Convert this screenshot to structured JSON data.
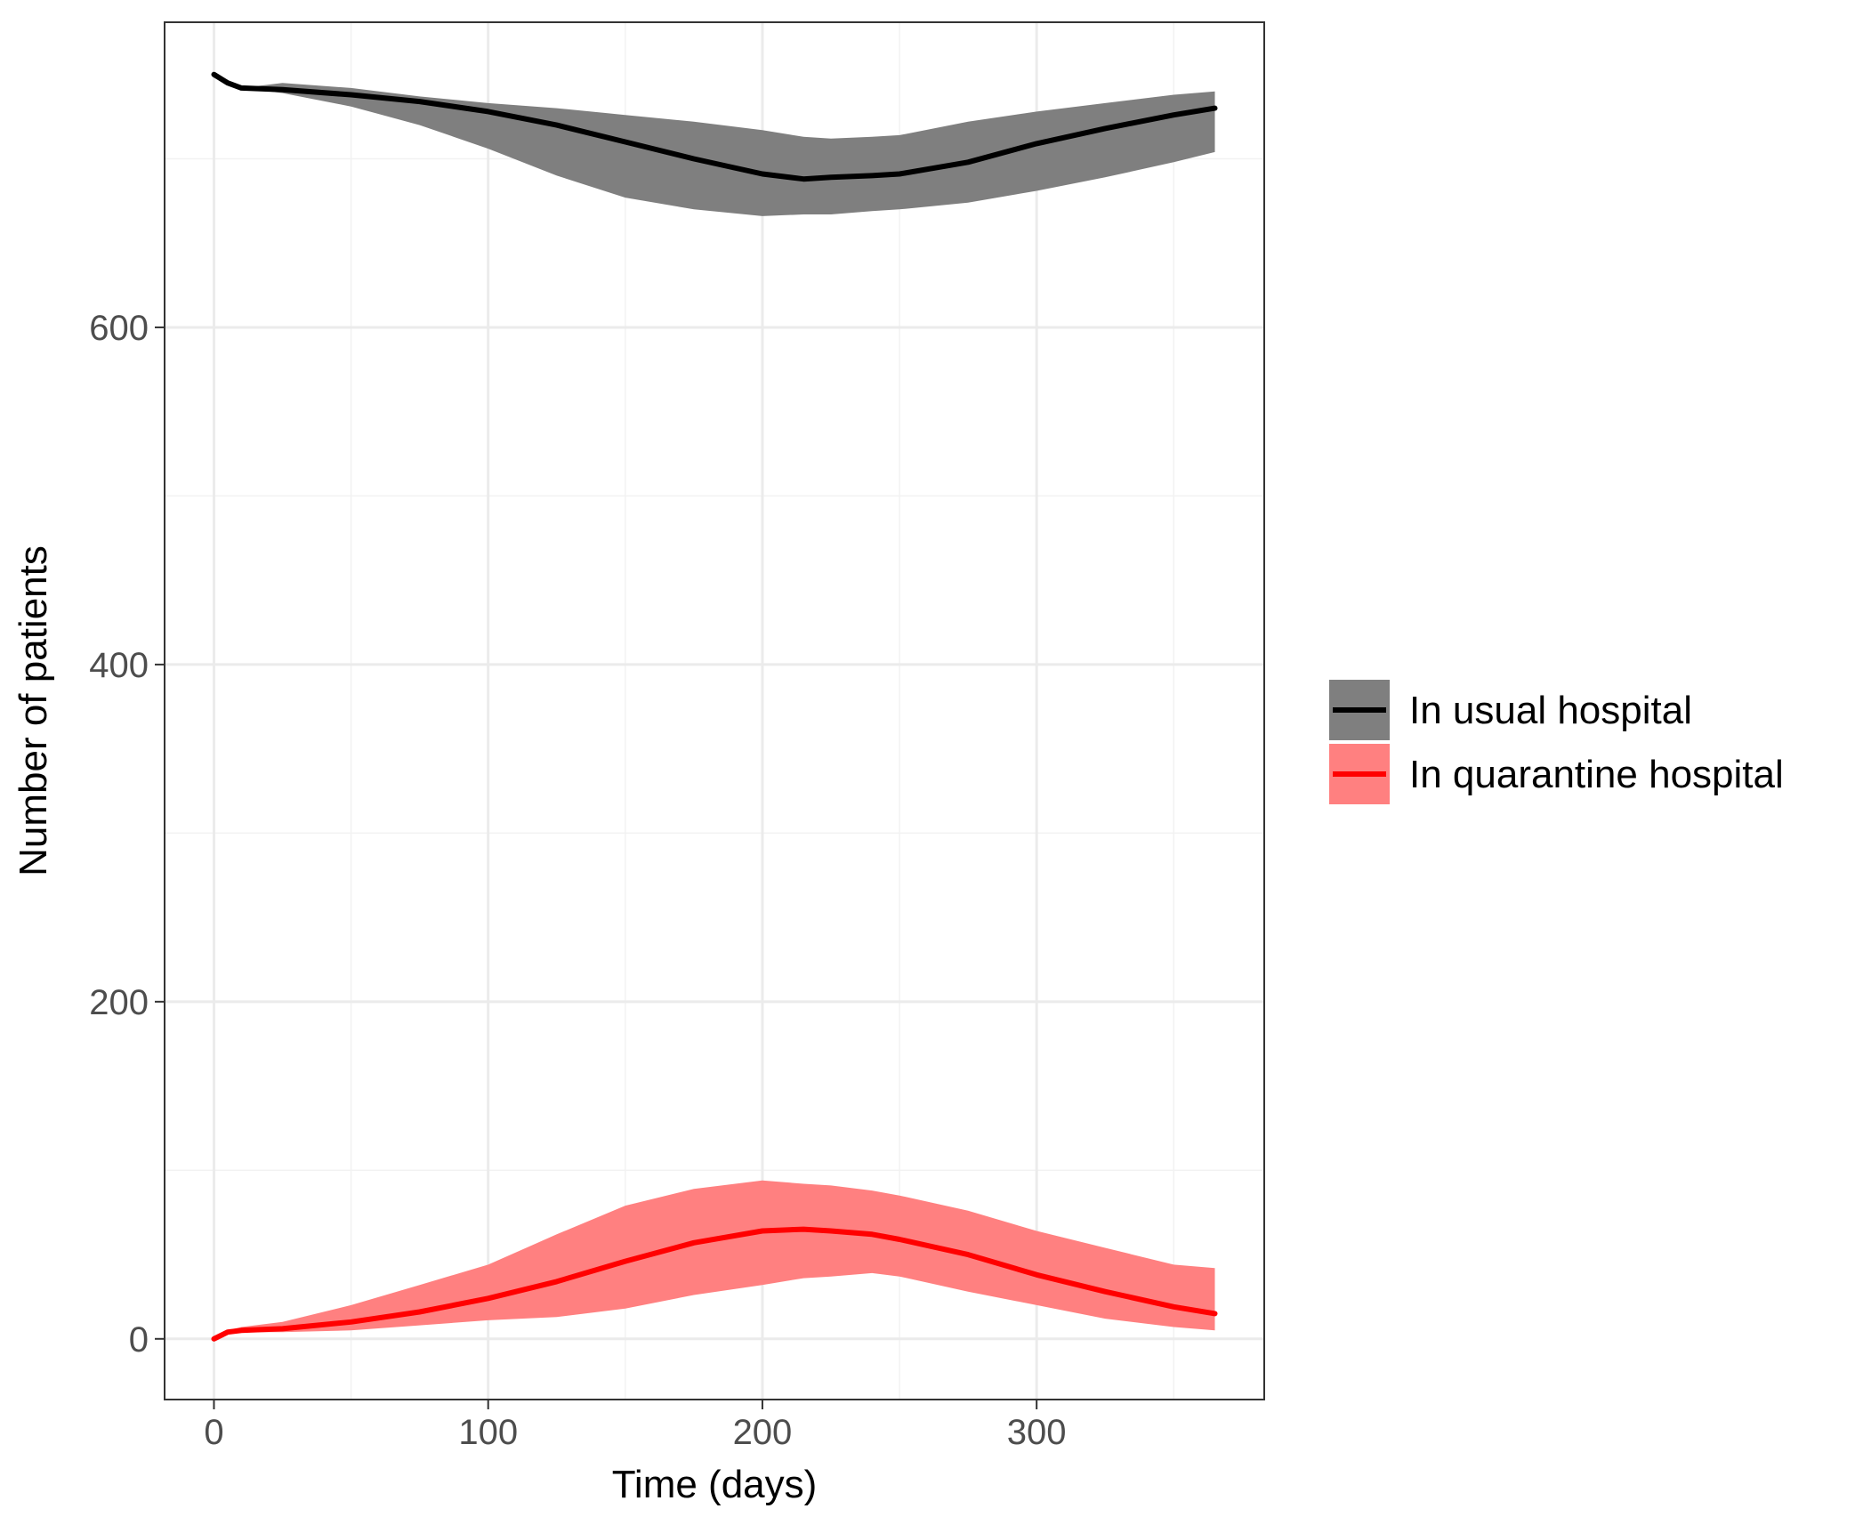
{
  "chart_data": {
    "type": "line",
    "title": "",
    "xlabel": "Time (days)",
    "ylabel": "Number of patients",
    "xlim": [
      -18,
      383
    ],
    "ylim": [
      -36,
      781
    ],
    "x_ticks": [
      0,
      100,
      200,
      300
    ],
    "x_tick_labels": [
      "0",
      "100",
      "200",
      "300"
    ],
    "y_ticks": [
      0,
      200,
      400,
      600
    ],
    "y_tick_labels": [
      "0",
      "200",
      "400",
      "600"
    ],
    "grid": true,
    "legend_position": "right",
    "series": [
      {
        "name": "In usual hospital",
        "color": "#000000",
        "band_color": "#7f7f7f",
        "x": [
          0,
          5,
          10,
          25,
          50,
          75,
          100,
          125,
          150,
          175,
          200,
          215,
          225,
          240,
          250,
          275,
          300,
          325,
          350,
          365
        ],
        "y": [
          750,
          745,
          742,
          741,
          738,
          734,
          728,
          720,
          710,
          700,
          691,
          688,
          689,
          690,
          691,
          698,
          709,
          718,
          726,
          730
        ],
        "lower": [
          750,
          745,
          742,
          739,
          731,
          720,
          706,
          690,
          677,
          670,
          666,
          667,
          667,
          669,
          670,
          674,
          681,
          689,
          698,
          704
        ],
        "upper": [
          750,
          745,
          742,
          745,
          742,
          737,
          733,
          730,
          726,
          722,
          717,
          713,
          712,
          713,
          714,
          722,
          728,
          733,
          738,
          740
        ]
      },
      {
        "name": "In quarantine hospital",
        "color": "#ff0000",
        "band_color": "#ff8080",
        "x": [
          0,
          5,
          10,
          25,
          50,
          75,
          100,
          125,
          150,
          175,
          200,
          215,
          225,
          240,
          250,
          275,
          300,
          325,
          350,
          365
        ],
        "y": [
          0,
          4,
          5,
          6,
          10,
          16,
          24,
          34,
          46,
          57,
          64,
          65,
          64,
          62,
          59,
          50,
          38,
          28,
          19,
          15
        ],
        "lower": [
          0,
          3,
          4,
          4,
          5,
          8,
          11,
          13,
          18,
          26,
          32,
          36,
          37,
          39,
          37,
          28,
          20,
          12,
          7,
          5
        ],
        "upper": [
          0,
          5,
          7,
          10,
          20,
          32,
          44,
          62,
          79,
          89,
          94,
          92,
          91,
          88,
          85,
          76,
          64,
          54,
          44,
          42
        ]
      }
    ]
  }
}
